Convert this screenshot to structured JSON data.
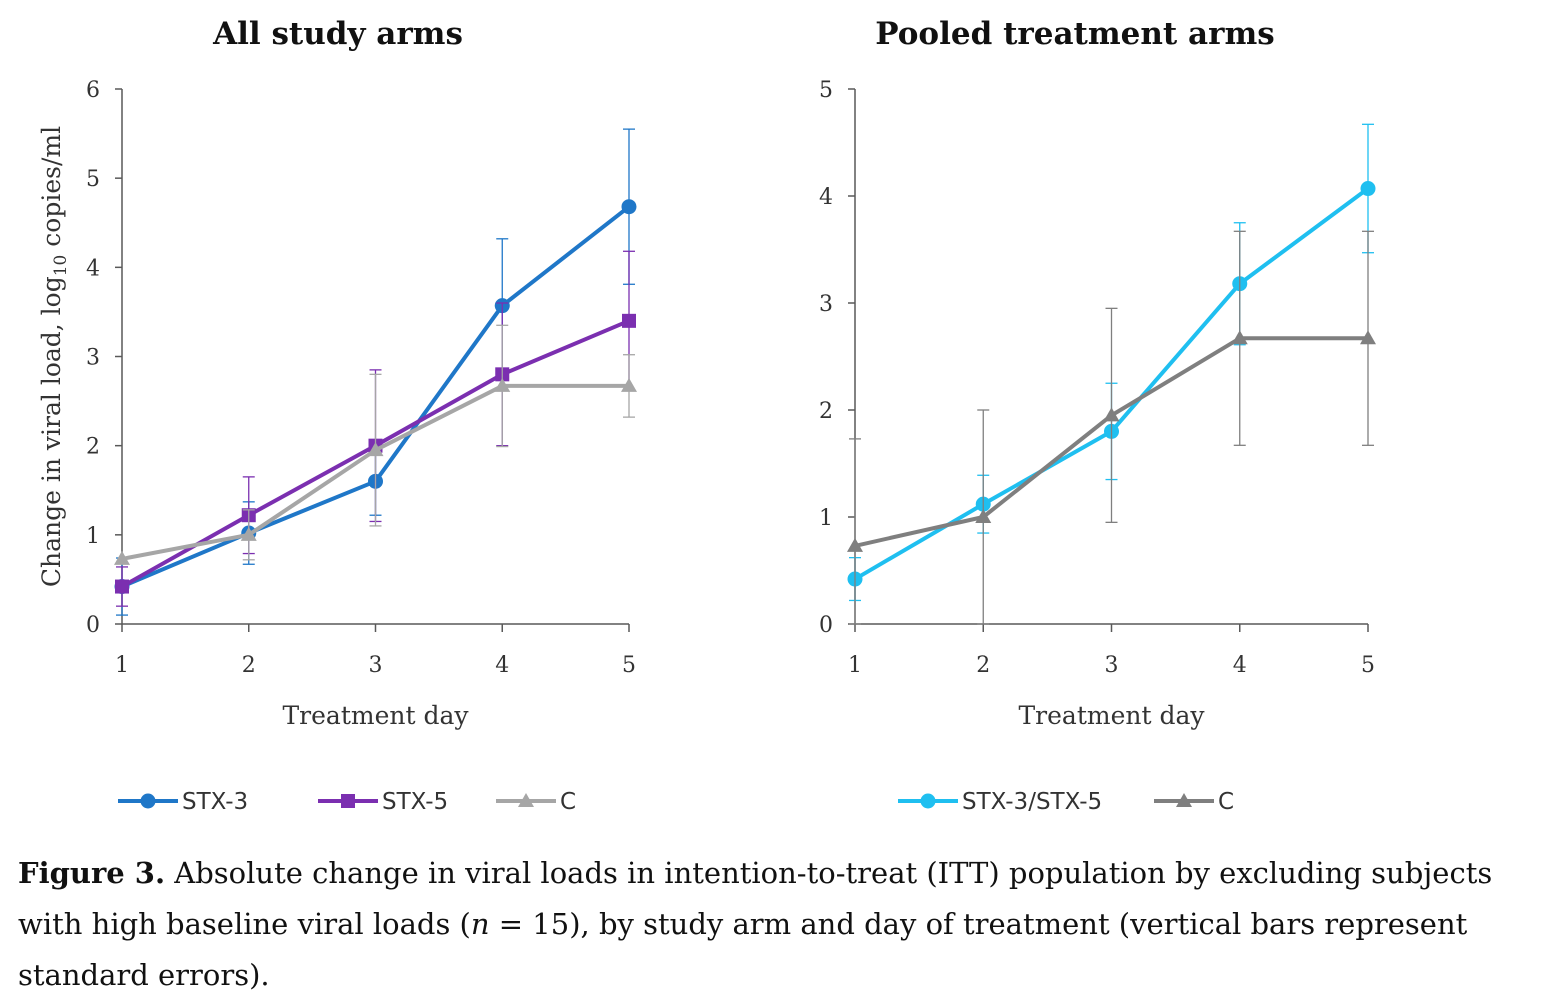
{
  "chart_data": [
    {
      "type": "line",
      "title": "All study arms",
      "xlabel": "Treatment day",
      "ylabel": "Change in viral load, log",
      "ylabel_sub": "10",
      "ylabel_suffix": " copies/ml",
      "x": [
        1,
        2,
        3,
        4,
        5
      ],
      "xlim": [
        1,
        5
      ],
      "ylim": [
        0,
        6
      ],
      "yticks": [
        0,
        1,
        2,
        3,
        4,
        5,
        6
      ],
      "grid": false,
      "legend_position": "bottom",
      "series": [
        {
          "name": "STX-3",
          "color": "#1f77c8",
          "marker": "circle",
          "values": [
            0.42,
            1.02,
            1.6,
            3.57,
            4.68
          ],
          "error": [
            0.32,
            0.35,
            0.38,
            0.75,
            0.87
          ]
        },
        {
          "name": "STX-5",
          "color": "#7b2fb0",
          "marker": "square",
          "values": [
            0.42,
            1.22,
            2.0,
            2.8,
            3.4
          ],
          "error": [
            0.22,
            0.43,
            0.85,
            0.8,
            0.78
          ]
        },
        {
          "name": "C",
          "color": "#a6a6a6",
          "marker": "triangle",
          "values": [
            0.73,
            1.0,
            1.95,
            2.67,
            2.67
          ],
          "error": [
            0.0,
            0.28,
            0.85,
            0.68,
            0.35
          ]
        }
      ]
    },
    {
      "type": "line",
      "title": "Pooled treatment arms",
      "xlabel": "Treatment day",
      "ylabel": "",
      "x": [
        1,
        2,
        3,
        4,
        5
      ],
      "xlim": [
        1,
        5
      ],
      "ylim": [
        0,
        5
      ],
      "yticks": [
        0,
        1,
        2,
        3,
        4,
        5
      ],
      "grid": false,
      "legend_position": "bottom",
      "series": [
        {
          "name": "STX-3/STX-5",
          "color": "#1fbff0",
          "marker": "circle",
          "values": [
            0.42,
            1.12,
            1.8,
            3.18,
            4.07
          ],
          "error": [
            0.2,
            0.27,
            0.45,
            0.57,
            0.6
          ]
        },
        {
          "name": "C",
          "color": "#7f7f7f",
          "marker": "triangle",
          "values": [
            0.73,
            1.0,
            1.95,
            2.67,
            2.67
          ],
          "error": [
            1.0,
            1.0,
            1.0,
            1.0,
            1.0
          ]
        }
      ]
    }
  ],
  "caption": {
    "label": "Figure 3.",
    "text_before_n": " Absolute change in viral loads in intention-to-treat (ITT) population by excluding subjects with high baseline viral loads (",
    "n_symbol": "n",
    "text_after_n": " = 15), by study arm and day of treatment (vertical bars represent standard errors)."
  }
}
